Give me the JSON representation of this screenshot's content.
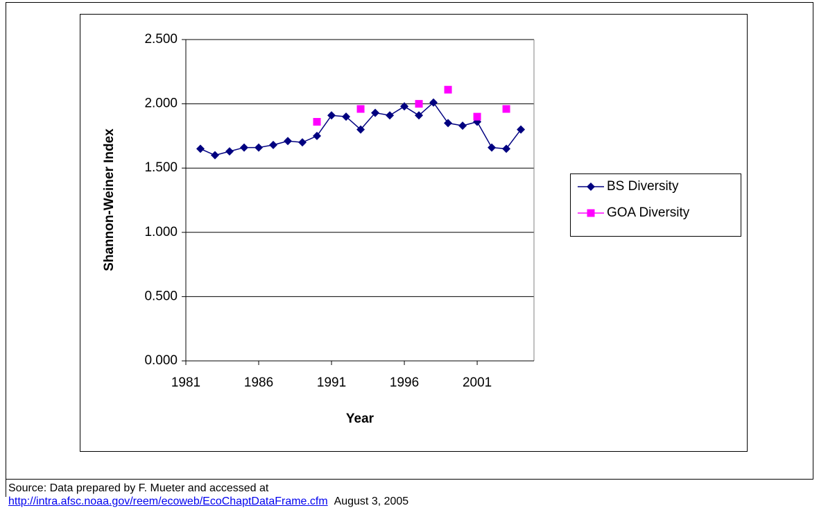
{
  "chart_data": {
    "type": "line",
    "y_label": "Shannon-Weiner Index",
    "x_label": "Year",
    "x": [
      1982,
      1983,
      1984,
      1985,
      1986,
      1987,
      1988,
      1989,
      1990,
      1991,
      1992,
      1993,
      1994,
      1995,
      1996,
      1997,
      1998,
      1999,
      2000,
      2001,
      2002,
      2003,
      2004
    ],
    "series": [
      {
        "name": "BS Diversity",
        "color": "#000080",
        "marker": "diamond",
        "line": true,
        "values": [
          1.65,
          1.6,
          1.63,
          1.66,
          1.66,
          1.68,
          1.71,
          1.7,
          1.75,
          1.91,
          1.9,
          1.8,
          1.93,
          1.91,
          1.98,
          1.91,
          2.01,
          1.85,
          1.83,
          1.86,
          1.66,
          1.65,
          1.8
        ]
      },
      {
        "name": "GOA Diversity",
        "color": "#ff00ff",
        "marker": "square",
        "line": false,
        "values": [
          null,
          null,
          null,
          null,
          null,
          null,
          null,
          null,
          1.86,
          null,
          null,
          1.96,
          null,
          null,
          null,
          2.0,
          null,
          2.11,
          null,
          1.9,
          null,
          1.96,
          null
        ]
      }
    ],
    "xlim": [
      1981,
      2004.9
    ],
    "xticks": [
      1981,
      1986,
      1991,
      1996,
      2001
    ],
    "ylim": [
      0,
      2.5
    ],
    "yticks": [
      {
        "value": 0,
        "label": "0.000"
      },
      {
        "value": 0.5,
        "label": "0.500"
      },
      {
        "value": 1,
        "label": "1.000"
      },
      {
        "value": 1.5,
        "label": "1.500"
      },
      {
        "value": 2,
        "label": "2.000"
      },
      {
        "value": 2.5,
        "label": "2.500"
      }
    ],
    "grid": true,
    "legend": "right"
  },
  "source": {
    "text": "Source: Data prepared by F. Mueter and accessed at",
    "link": "http://intra.afsc.noaa.gov/reem/ecoweb/EcoChaptDataFrame.cfm",
    "date": "August 3, 2005"
  }
}
